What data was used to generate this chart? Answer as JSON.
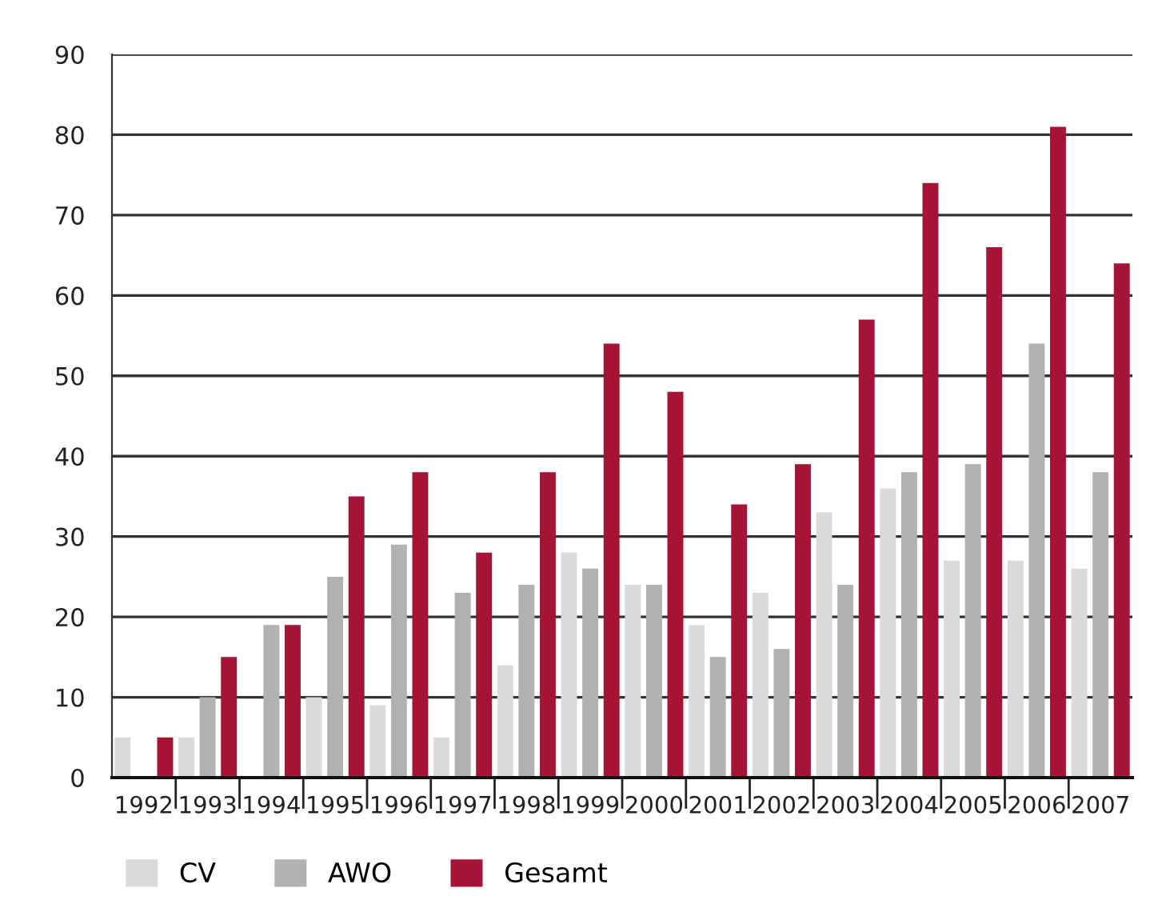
{
  "chart_data": {
    "type": "bar",
    "categories": [
      "1992",
      "1993",
      "1994",
      "1995",
      "1996",
      "1997",
      "1998",
      "1999",
      "2000",
      "2001",
      "2002",
      "2003",
      "2004",
      "2005",
      "2006",
      "2007"
    ],
    "series": [
      {
        "name": "CV",
        "color": "#d9dadc",
        "values": [
          5,
          5,
          0,
          10,
          9,
          5,
          14,
          28,
          24,
          19,
          23,
          33,
          36,
          27,
          27,
          26
        ]
      },
      {
        "name": "AWO",
        "color": "#b0b1b3",
        "values": [
          0,
          10,
          19,
          25,
          29,
          23,
          24,
          26,
          24,
          15,
          16,
          24,
          38,
          39,
          54,
          38
        ]
      },
      {
        "name": "Gesamt",
        "color": "#a51435",
        "values": [
          5,
          15,
          19,
          35,
          38,
          28,
          38,
          54,
          48,
          34,
          39,
          57,
          74,
          66,
          81,
          64
        ]
      }
    ],
    "ylim": [
      0,
      90
    ],
    "yticks": [
      0,
      10,
      20,
      30,
      40,
      50,
      60,
      70,
      80,
      90
    ],
    "grid": "y",
    "legend": "bottom left"
  }
}
